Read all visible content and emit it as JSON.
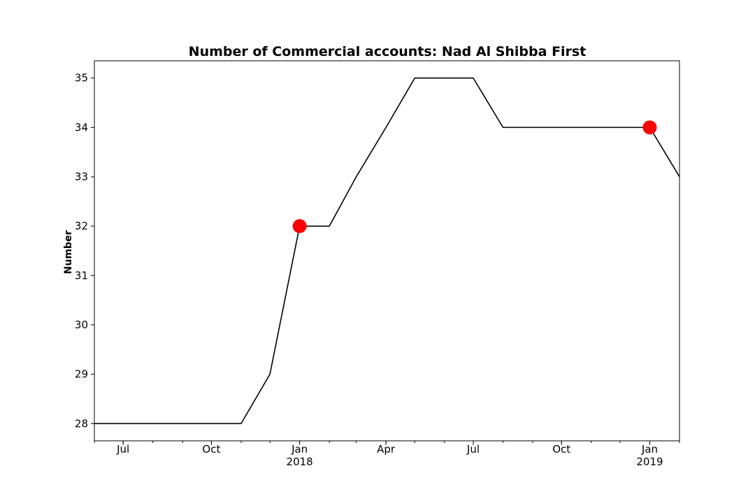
{
  "chart_data": {
    "type": "line",
    "title": "Number of Commercial accounts: Nad Al Shibba First",
    "xlabel": "",
    "ylabel": "Number",
    "x_type": "date",
    "xlim": [
      "2017-05-31",
      "2019-01-31"
    ],
    "ylim": [
      27.65,
      35.35
    ],
    "grid": false,
    "series": [
      {
        "name": "",
        "color": "#000000",
        "x": [
          "2017-05-31",
          "2017-06-30",
          "2017-07-31",
          "2017-08-31",
          "2017-09-30",
          "2017-10-31",
          "2017-11-30",
          "2017-12-31",
          "2018-01-31",
          "2018-02-28",
          "2018-03-31",
          "2018-04-30",
          "2018-05-31",
          "2018-06-30",
          "2018-07-31",
          "2018-08-31",
          "2018-09-30",
          "2018-10-31",
          "2018-11-30",
          "2018-12-31",
          "2019-01-31"
        ],
        "y": [
          28,
          28,
          28,
          28,
          28,
          28,
          29,
          32,
          32,
          33,
          34,
          35,
          35,
          35,
          34,
          34,
          34,
          34,
          34,
          34,
          33
        ]
      }
    ],
    "markers": {
      "color": "#ff0000",
      "points": [
        {
          "x": "2017-12-31",
          "y": 32
        },
        {
          "x": "2018-12-31",
          "y": 34
        }
      ]
    },
    "y_ticks": [
      "28",
      "29",
      "30",
      "31",
      "32",
      "33",
      "34",
      "35"
    ],
    "x_major_ticks": [
      {
        "date": "2017-06-30",
        "label": "Jul",
        "sublabel": ""
      },
      {
        "date": "2017-09-30",
        "label": "Oct",
        "sublabel": ""
      },
      {
        "date": "2017-12-31",
        "label": "Jan",
        "sublabel": "2018"
      },
      {
        "date": "2018-03-31",
        "label": "Apr",
        "sublabel": ""
      },
      {
        "date": "2018-06-30",
        "label": "Jul",
        "sublabel": ""
      },
      {
        "date": "2018-09-30",
        "label": "Oct",
        "sublabel": ""
      },
      {
        "date": "2018-12-31",
        "label": "Jan",
        "sublabel": "2019"
      }
    ]
  }
}
